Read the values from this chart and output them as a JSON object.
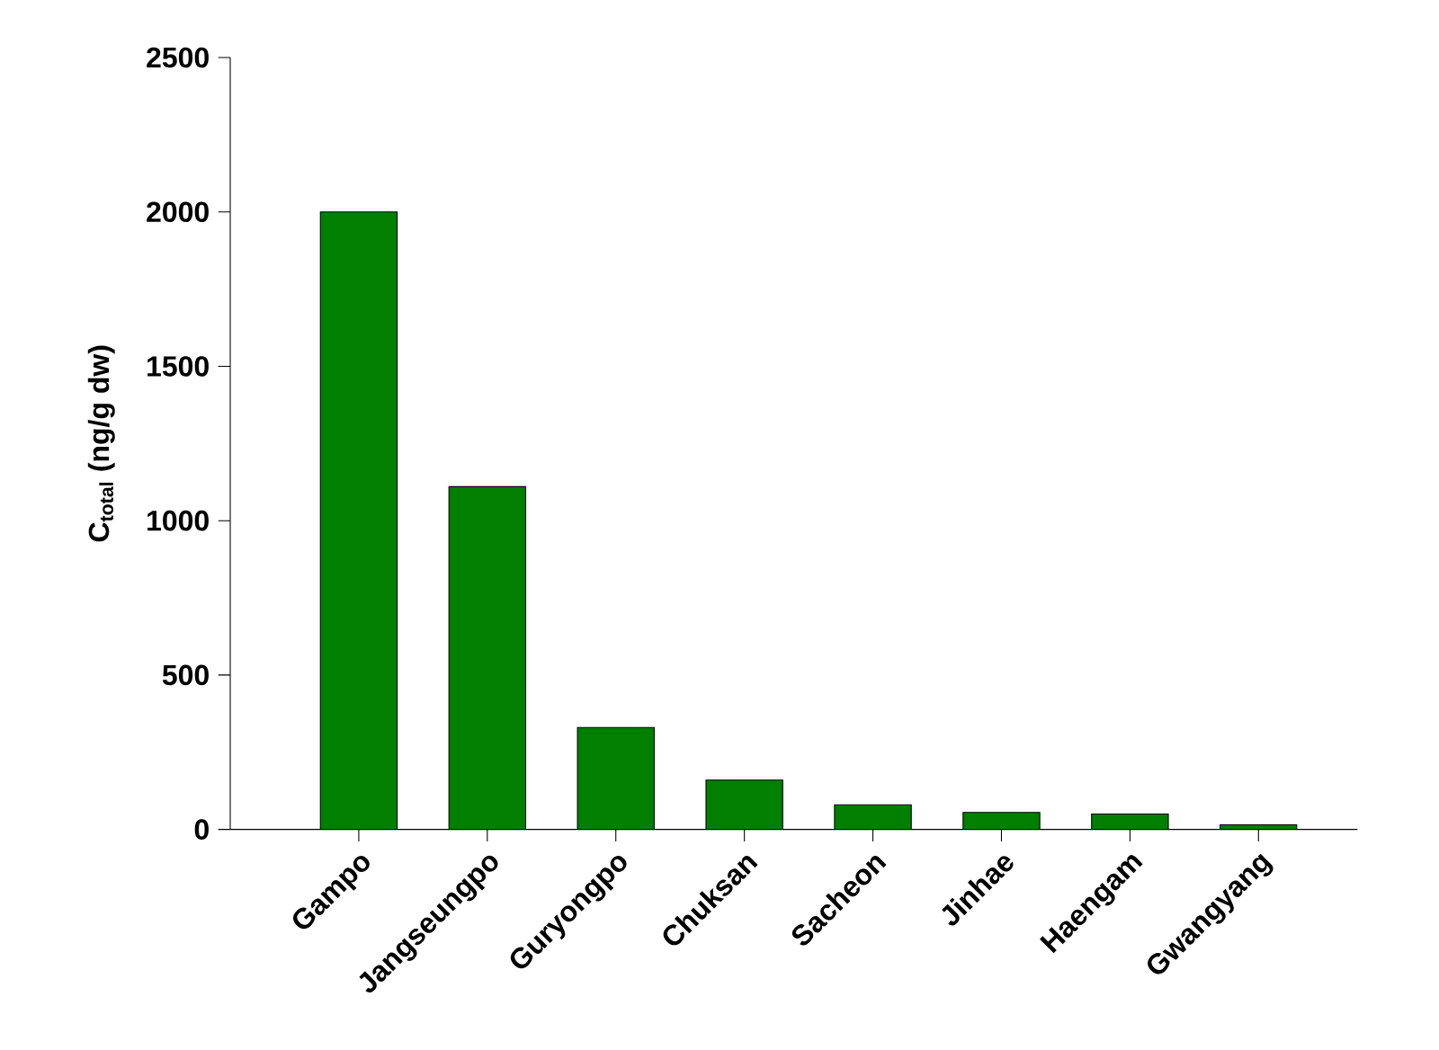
{
  "chart_data": {
    "type": "bar",
    "ylabel": "C$_{total}$ (ng/g dw)",
    "categories": [
      "Gampo",
      "Jangseungpo",
      "Guryongpo",
      "Chuksan",
      "Sacheon",
      "Jinhae",
      "Haengam",
      "Gwangyang"
    ],
    "values": [
      2000,
      1110,
      330,
      160,
      80,
      55,
      50,
      15
    ],
    "color": "#007f00",
    "ylim": [
      0,
      2500
    ],
    "yticks": [
      0,
      500,
      1000,
      1500,
      2000,
      2500
    ],
    "grid": false
  }
}
